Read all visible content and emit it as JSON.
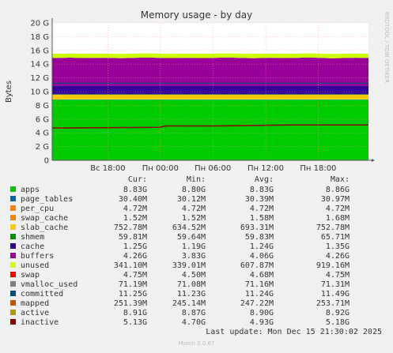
{
  "chart_data": {
    "type": "area",
    "title": "Memory usage - by day",
    "ylabel": "Bytes",
    "side_label": "RRDTOOL / TOBI OETIKER",
    "footer": "Munin 2.0.67",
    "last_update": "Last update: Mon Dec 15 21:30:02 2025",
    "ylim": [
      0,
      20
    ],
    "y_ticks": [
      {
        "v": 0,
        "label": "0"
      },
      {
        "v": 2,
        "label": "2 G"
      },
      {
        "v": 4,
        "label": "4 G"
      },
      {
        "v": 6,
        "label": "6 G"
      },
      {
        "v": 8,
        "label": "8 G"
      },
      {
        "v": 10,
        "label": "10 G"
      },
      {
        "v": 12,
        "label": "12 G"
      },
      {
        "v": 14,
        "label": "14 G"
      },
      {
        "v": 16,
        "label": "16 G"
      },
      {
        "v": 18,
        "label": "18 G"
      },
      {
        "v": 20,
        "label": "20 G"
      }
    ],
    "x_ticks": [
      {
        "t": 0.176,
        "label": "Вс 18:00"
      },
      {
        "t": 0.342,
        "label": "Пн 00:00"
      },
      {
        "t": 0.508,
        "label": "Пн 06:00"
      },
      {
        "t": 0.675,
        "label": "Пн 12:00"
      },
      {
        "t": 0.841,
        "label": "Пн 18:00"
      }
    ],
    "x_ticks_note": "t = fraction of the day-long time window",
    "columns": [
      "Cur:",
      "Min:",
      "Avg:",
      "Max:"
    ],
    "series": [
      {
        "name": "apps",
        "color": "#00cc00",
        "cur": "8.83G",
        "min": "8.80G",
        "avg": "8.83G",
        "max": "8.86G"
      },
      {
        "name": "page_tables",
        "color": "#0066b3",
        "cur": "30.40M",
        "min": "30.12M",
        "avg": "30.39M",
        "max": "30.97M"
      },
      {
        "name": "per_cpu",
        "color": "#ff8000",
        "cur": "4.72M",
        "min": "4.72M",
        "avg": "4.72M",
        "max": "4.72M"
      },
      {
        "name": "swap_cache",
        "color": "#ff8000",
        "cur": "1.52M",
        "min": "1.52M",
        "avg": "1.58M",
        "max": "1.68M"
      },
      {
        "name": "slab_cache",
        "color": "#ffcc00",
        "cur": "752.78M",
        "min": "634.52M",
        "avg": "693.31M",
        "max": "752.78M"
      },
      {
        "name": "shmem",
        "color": "#008f00",
        "cur": "59.81M",
        "min": "59.64M",
        "avg": "59.83M",
        "max": "65.71M"
      },
      {
        "name": "cache",
        "color": "#330099",
        "cur": "1.25G",
        "min": "1.19G",
        "avg": "1.24G",
        "max": "1.35G"
      },
      {
        "name": "buffers",
        "color": "#990099",
        "cur": "4.26G",
        "min": "3.83G",
        "avg": "4.06G",
        "max": "4.26G"
      },
      {
        "name": "unused",
        "color": "#ccff00",
        "cur": "341.10M",
        "min": "339.01M",
        "avg": "607.87M",
        "max": "919.16M"
      },
      {
        "name": "swap",
        "color": "#ff0000",
        "cur": "4.75M",
        "min": "4.50M",
        "avg": "4.68M",
        "max": "4.75M"
      },
      {
        "name": "vmalloc_used",
        "color": "#808080",
        "cur": "71.19M",
        "min": "71.08M",
        "avg": "71.16M",
        "max": "71.31M"
      },
      {
        "name": "committed",
        "color": "#004d80",
        "cur": "11.25G",
        "min": "11.23G",
        "avg": "11.24G",
        "max": "11.49G"
      },
      {
        "name": "mapped",
        "color": "#cc5200",
        "cur": "251.39M",
        "min": "245.14M",
        "avg": "247.22M",
        "max": "253.71M"
      },
      {
        "name": "active",
        "color": "#b39900",
        "cur": "8.91G",
        "min": "8.87G",
        "avg": "8.90G",
        "max": "8.92G"
      },
      {
        "name": "inactive",
        "color": "#8f0000",
        "cur": "5.13G",
        "min": "4.70G",
        "avg": "4.93G",
        "max": "5.18G"
      }
    ],
    "stack_profile": {
      "apps": 8.83,
      "page_tables": 0.03,
      "slab_cache": 0.69,
      "shmem": 0.06,
      "cache": 1.24,
      "buffers": 4.06,
      "unused": 0.61,
      "committed": 11.24,
      "inactive": [
        [
          0,
          4.7
        ],
        [
          0.34,
          4.8
        ],
        [
          0.36,
          5.0
        ],
        [
          0.52,
          5.0
        ],
        [
          0.75,
          5.15
        ],
        [
          1,
          5.15
        ]
      ]
    }
  }
}
